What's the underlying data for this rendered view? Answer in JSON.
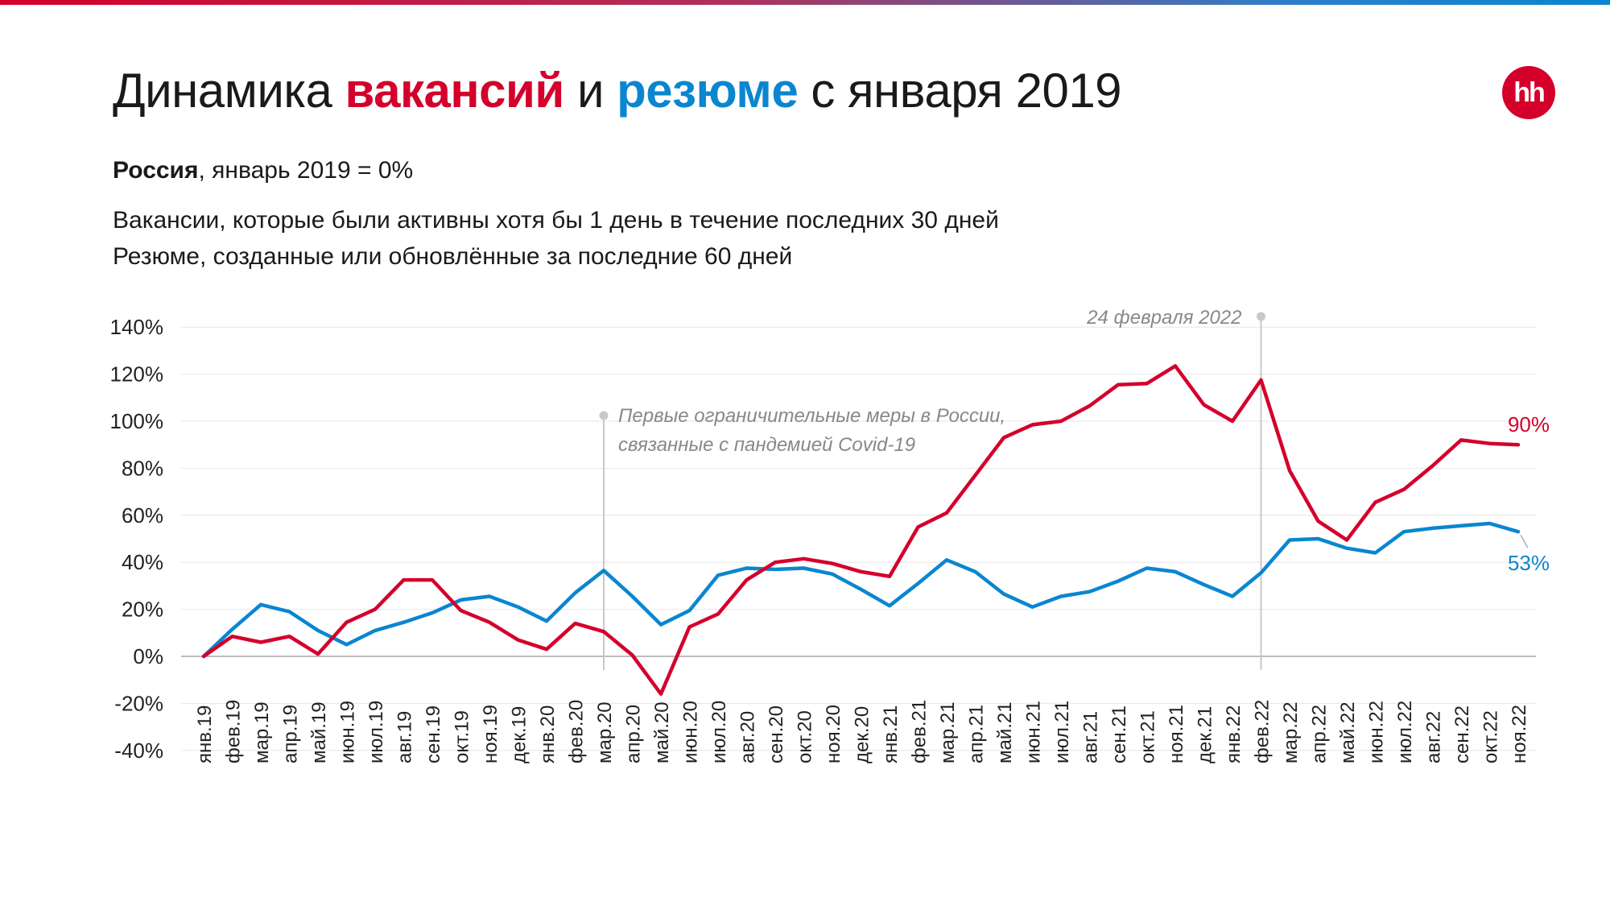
{
  "header": {
    "title_part1": "Динамика ",
    "title_vacancies": "вакансий",
    "title_part2": " и ",
    "title_resumes": "резюме",
    "title_part3": " с января 2019",
    "logo_text": "hh"
  },
  "subtitle": {
    "region": "Россия",
    "baseline": ", январь 2019 = 0%"
  },
  "descriptions": [
    "Вакансии, которые были активны хотя бы 1 день в течение последних 30 дней",
    "Резюме, созданные или обновлённые за последние 60 дней"
  ],
  "colors": {
    "vacancies": "#d4002b",
    "resumes": "#0a86d0",
    "axis_text": "#222222",
    "annotation": "#888888",
    "grid": "#e6e6e6",
    "zero_line": "#bdbdbd"
  },
  "chart_data": {
    "type": "line",
    "ylim": [
      -40,
      140
    ],
    "yticks": [
      140,
      120,
      100,
      80,
      60,
      40,
      20,
      0,
      -20,
      -40
    ],
    "ytick_labels": [
      "140%",
      "120%",
      "100%",
      "80%",
      "60%",
      "40%",
      "20%",
      "0%",
      "-20%",
      "-40%"
    ],
    "grid": true,
    "categories": [
      "янв.19",
      "фев.19",
      "мар.19",
      "апр.19",
      "май.19",
      "июн.19",
      "июл.19",
      "авг.19",
      "сен.19",
      "окт.19",
      "ноя.19",
      "дек.19",
      "янв.20",
      "фев.20",
      "мар.20",
      "апр.20",
      "май.20",
      "июн.20",
      "июл.20",
      "авг.20",
      "сен.20",
      "окт.20",
      "ноя.20",
      "дек.20",
      "янв.21",
      "фев.21",
      "мар.21",
      "апр.21",
      "май.21",
      "июн.21",
      "июл.21",
      "авг.21",
      "сен.21",
      "окт.21",
      "ноя.21",
      "дек.21",
      "янв.22",
      "фев.22",
      "мар.22",
      "апр.22",
      "май.22",
      "июн.22",
      "июл.22",
      "авг.22",
      "сен.22",
      "окт.22",
      "ноя.22"
    ],
    "series": [
      {
        "key": "vacancies",
        "values": [
          0,
          8.5,
          6,
          8.5,
          1,
          14.5,
          20,
          32.5,
          32.5,
          19.5,
          14.5,
          7,
          3,
          14,
          10.5,
          0.5,
          -16,
          12.5,
          18,
          32.5,
          40,
          41.5,
          39.5,
          36,
          34,
          55,
          61,
          77,
          93,
          98.5,
          100,
          106.5,
          115.5,
          116,
          123.5,
          107,
          100,
          117.5,
          79,
          57.5,
          49.5,
          65.5,
          71,
          81,
          92,
          90.5,
          90
        ],
        "end_label": "90%"
      },
      {
        "key": "resumes",
        "values": [
          0,
          11.5,
          22,
          19,
          11,
          5,
          11,
          14.5,
          18.5,
          24,
          25.5,
          21,
          15,
          27,
          36.5,
          25.5,
          13.5,
          19.5,
          34.5,
          37.5,
          37,
          37.5,
          35,
          28.5,
          21.5,
          31,
          41,
          36,
          26.5,
          21,
          25.5,
          27.5,
          32,
          37.5,
          36,
          30.5,
          25.5,
          35.5,
          49.5,
          50,
          46,
          44,
          53,
          54.5,
          55.5,
          56.5,
          53
        ],
        "end_label": "53%"
      }
    ],
    "annotations": [
      {
        "category": "мар.20",
        "text_lines": [
          "Первые ограничительные меры в России,",
          "связанные с пандемией Covid-19"
        ]
      },
      {
        "category": "фев.22",
        "text_lines": [
          "24 февраля 2022"
        ]
      }
    ]
  }
}
